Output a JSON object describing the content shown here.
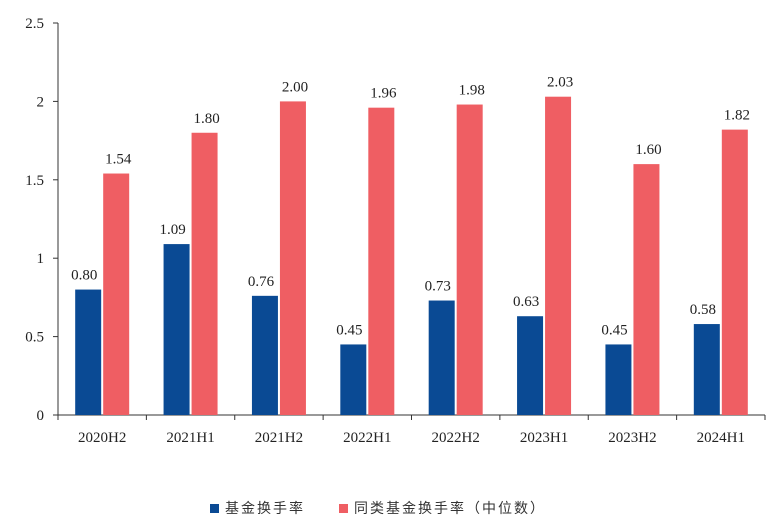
{
  "chart_data": {
    "type": "bar",
    "categories": [
      "2020H2",
      "2021H1",
      "2021H2",
      "2022H1",
      "2022H2",
      "2023H1",
      "2023H2",
      "2024H1"
    ],
    "series": [
      {
        "name": "基金换手率",
        "color": "#0a4a94",
        "values": [
          0.8,
          1.09,
          0.76,
          0.45,
          0.73,
          0.63,
          0.45,
          0.58
        ],
        "labels": [
          "0.80",
          "1.09",
          "0.76",
          "0.45",
          "0.73",
          "0.63",
          "0.45",
          "0.58"
        ]
      },
      {
        "name": "同类基金换手率（中位数）",
        "color": "#ef5e63",
        "values": [
          1.54,
          1.8,
          2.0,
          1.96,
          1.98,
          2.03,
          1.6,
          1.82
        ],
        "labels": [
          "1.54",
          "1.80",
          "2.00",
          "1.96",
          "1.98",
          "2.03",
          "1.60",
          "1.82"
        ]
      }
    ],
    "ylim": [
      0,
      2.5
    ],
    "yticks": [
      "0",
      "0.5",
      "1",
      "1.5",
      "2",
      "2.5"
    ],
    "ytick_values": [
      0,
      0.5,
      1,
      1.5,
      2,
      2.5
    ],
    "grid": false,
    "legend": "bottom"
  }
}
